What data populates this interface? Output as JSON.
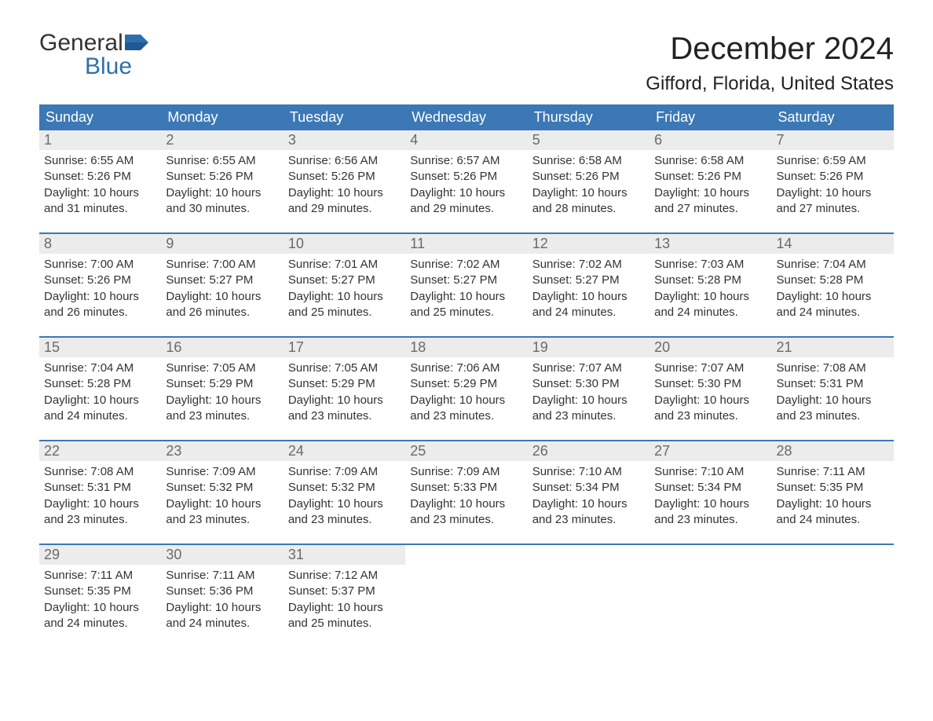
{
  "logo": {
    "top": "General",
    "bottom": "Blue"
  },
  "title": "December 2024",
  "location": "Gifford, Florida, United States",
  "colors": {
    "header_bg": "#3b78b5",
    "header_fg": "#ffffff",
    "daynum_bg": "#ececec",
    "daynum_fg": "#6a6a6a",
    "logo_blue": "#2f6fab"
  },
  "weekdays": [
    "Sunday",
    "Monday",
    "Tuesday",
    "Wednesday",
    "Thursday",
    "Friday",
    "Saturday"
  ],
  "weeks": [
    [
      {
        "n": "1",
        "sr": "6:55 AM",
        "ss": "5:26 PM",
        "dl": "10 hours and 31 minutes."
      },
      {
        "n": "2",
        "sr": "6:55 AM",
        "ss": "5:26 PM",
        "dl": "10 hours and 30 minutes."
      },
      {
        "n": "3",
        "sr": "6:56 AM",
        "ss": "5:26 PM",
        "dl": "10 hours and 29 minutes."
      },
      {
        "n": "4",
        "sr": "6:57 AM",
        "ss": "5:26 PM",
        "dl": "10 hours and 29 minutes."
      },
      {
        "n": "5",
        "sr": "6:58 AM",
        "ss": "5:26 PM",
        "dl": "10 hours and 28 minutes."
      },
      {
        "n": "6",
        "sr": "6:58 AM",
        "ss": "5:26 PM",
        "dl": "10 hours and 27 minutes."
      },
      {
        "n": "7",
        "sr": "6:59 AM",
        "ss": "5:26 PM",
        "dl": "10 hours and 27 minutes."
      }
    ],
    [
      {
        "n": "8",
        "sr": "7:00 AM",
        "ss": "5:26 PM",
        "dl": "10 hours and 26 minutes."
      },
      {
        "n": "9",
        "sr": "7:00 AM",
        "ss": "5:27 PM",
        "dl": "10 hours and 26 minutes."
      },
      {
        "n": "10",
        "sr": "7:01 AM",
        "ss": "5:27 PM",
        "dl": "10 hours and 25 minutes."
      },
      {
        "n": "11",
        "sr": "7:02 AM",
        "ss": "5:27 PM",
        "dl": "10 hours and 25 minutes."
      },
      {
        "n": "12",
        "sr": "7:02 AM",
        "ss": "5:27 PM",
        "dl": "10 hours and 24 minutes."
      },
      {
        "n": "13",
        "sr": "7:03 AM",
        "ss": "5:28 PM",
        "dl": "10 hours and 24 minutes."
      },
      {
        "n": "14",
        "sr": "7:04 AM",
        "ss": "5:28 PM",
        "dl": "10 hours and 24 minutes."
      }
    ],
    [
      {
        "n": "15",
        "sr": "7:04 AM",
        "ss": "5:28 PM",
        "dl": "10 hours and 24 minutes."
      },
      {
        "n": "16",
        "sr": "7:05 AM",
        "ss": "5:29 PM",
        "dl": "10 hours and 23 minutes."
      },
      {
        "n": "17",
        "sr": "7:05 AM",
        "ss": "5:29 PM",
        "dl": "10 hours and 23 minutes."
      },
      {
        "n": "18",
        "sr": "7:06 AM",
        "ss": "5:29 PM",
        "dl": "10 hours and 23 minutes."
      },
      {
        "n": "19",
        "sr": "7:07 AM",
        "ss": "5:30 PM",
        "dl": "10 hours and 23 minutes."
      },
      {
        "n": "20",
        "sr": "7:07 AM",
        "ss": "5:30 PM",
        "dl": "10 hours and 23 minutes."
      },
      {
        "n": "21",
        "sr": "7:08 AM",
        "ss": "5:31 PM",
        "dl": "10 hours and 23 minutes."
      }
    ],
    [
      {
        "n": "22",
        "sr": "7:08 AM",
        "ss": "5:31 PM",
        "dl": "10 hours and 23 minutes."
      },
      {
        "n": "23",
        "sr": "7:09 AM",
        "ss": "5:32 PM",
        "dl": "10 hours and 23 minutes."
      },
      {
        "n": "24",
        "sr": "7:09 AM",
        "ss": "5:32 PM",
        "dl": "10 hours and 23 minutes."
      },
      {
        "n": "25",
        "sr": "7:09 AM",
        "ss": "5:33 PM",
        "dl": "10 hours and 23 minutes."
      },
      {
        "n": "26",
        "sr": "7:10 AM",
        "ss": "5:34 PM",
        "dl": "10 hours and 23 minutes."
      },
      {
        "n": "27",
        "sr": "7:10 AM",
        "ss": "5:34 PM",
        "dl": "10 hours and 23 minutes."
      },
      {
        "n": "28",
        "sr": "7:11 AM",
        "ss": "5:35 PM",
        "dl": "10 hours and 24 minutes."
      }
    ],
    [
      {
        "n": "29",
        "sr": "7:11 AM",
        "ss": "5:35 PM",
        "dl": "10 hours and 24 minutes."
      },
      {
        "n": "30",
        "sr": "7:11 AM",
        "ss": "5:36 PM",
        "dl": "10 hours and 24 minutes."
      },
      {
        "n": "31",
        "sr": "7:12 AM",
        "ss": "5:37 PM",
        "dl": "10 hours and 25 minutes."
      },
      null,
      null,
      null,
      null
    ]
  ],
  "labels": {
    "sunrise": "Sunrise: ",
    "sunset": "Sunset: ",
    "daylight": "Daylight: "
  }
}
